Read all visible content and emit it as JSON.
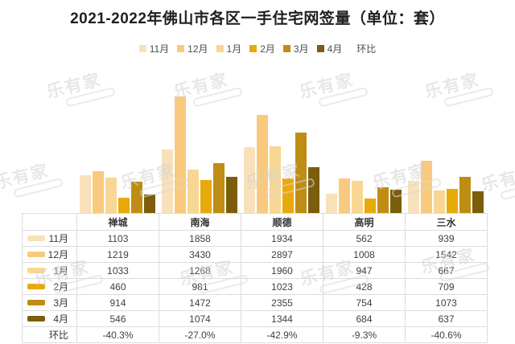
{
  "title": "2021-2022年佛山市各区一手住宅网签量（单位：套）",
  "watermark_text": "乐有家",
  "legend": {
    "extra_label": "环比"
  },
  "chart_data": {
    "type": "bar",
    "title": "2021-2022年佛山市各区一手住宅网签量（单位：套）",
    "categories": [
      "禅城",
      "南海",
      "顺德",
      "高明",
      "三水"
    ],
    "series": [
      {
        "name": "11月",
        "color": "#f8e1ba",
        "values": [
          1103,
          1858,
          1934,
          562,
          939
        ]
      },
      {
        "name": "12月",
        "color": "#f9ca7d",
        "values": [
          1219,
          3430,
          2897,
          1008,
          1542
        ]
      },
      {
        "name": "1月",
        "color": "#f8d693",
        "values": [
          1033,
          1268,
          1960,
          947,
          667
        ]
      },
      {
        "name": "2月",
        "color": "#e8a90b",
        "values": [
          460,
          981,
          1023,
          428,
          709
        ]
      },
      {
        "name": "3月",
        "color": "#bf8d14",
        "values": [
          914,
          1472,
          2355,
          754,
          1073
        ]
      },
      {
        "name": "4月",
        "color": "#7c5d0b",
        "values": [
          546,
          1074,
          1344,
          684,
          637
        ]
      }
    ],
    "extra_rows": [
      {
        "name": "环比",
        "values": [
          "-40.3%",
          "-27.0%",
          "-42.9%",
          "-9.3%",
          "-40.6%"
        ]
      }
    ],
    "xlabel": "",
    "ylabel": "",
    "ylim": [
      0,
      3500
    ],
    "grid": false,
    "legend_position": "top",
    "unit": "套"
  }
}
